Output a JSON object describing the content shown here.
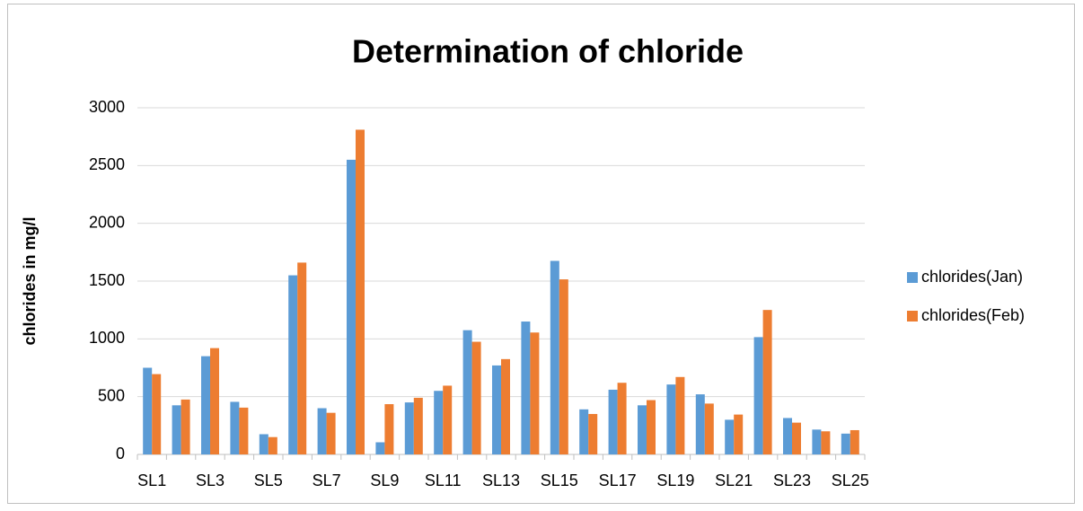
{
  "chart_data": {
    "type": "bar",
    "title": "Determination of chloride",
    "y_label": "chlorides in mg/l",
    "categories": [
      "SL1",
      null,
      "SL3",
      null,
      "SL5",
      null,
      "SL7",
      null,
      "SL9",
      null,
      "SL11",
      null,
      "SL13",
      null,
      "SL15",
      null,
      "SL17",
      null,
      "SL19",
      null,
      "SL21",
      null,
      "SL23",
      null,
      "SL25"
    ],
    "series": [
      {
        "name": "chlorides(Jan)",
        "color": "#5b9bd5",
        "values": [
          750,
          425,
          850,
          455,
          175,
          1550,
          400,
          2550,
          105,
          450,
          550,
          1075,
          770,
          1150,
          1675,
          390,
          560,
          425,
          605,
          520,
          300,
          1015,
          315,
          215,
          180
        ]
      },
      {
        "name": "chlorides(Feb)",
        "color": "#ed7d31",
        "values": [
          695,
          475,
          920,
          405,
          150,
          1660,
          360,
          2810,
          435,
          490,
          595,
          975,
          825,
          1055,
          1515,
          350,
          620,
          470,
          670,
          440,
          345,
          1250,
          275,
          200,
          210
        ]
      }
    ],
    "ylim": [
      0,
      3000
    ],
    "yticks": [
      0,
      500,
      1000,
      1500,
      2000,
      2500,
      3000
    ],
    "grid": true,
    "legend": "right"
  }
}
